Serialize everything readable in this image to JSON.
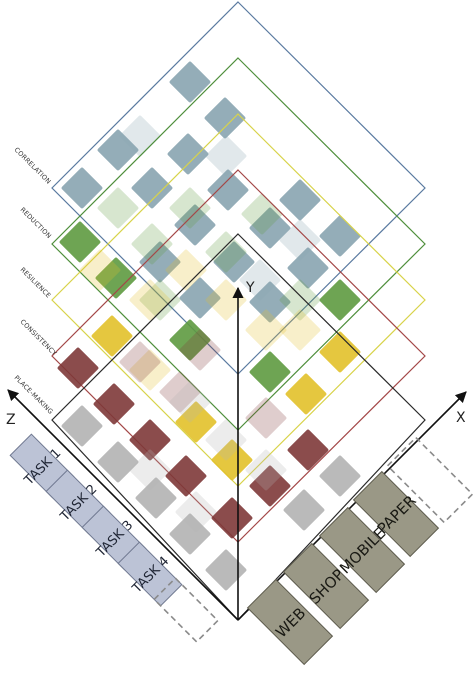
{
  "axes": {
    "y": "Y",
    "x": "X",
    "z": "Z"
  },
  "layers": [
    {
      "key": "correlation",
      "label": "CORRELATION",
      "stroke": "#5a7aa0",
      "fill": "#88a4b0"
    },
    {
      "key": "reduction",
      "label": "REDUCTION",
      "stroke": "#4f8f3c",
      "fill": "#5e9a40"
    },
    {
      "key": "resilience",
      "label": "RESILIENCE",
      "stroke": "#d8d34a",
      "fill": "#e2c12a"
    },
    {
      "key": "consistency",
      "label": "CONSISTENCY",
      "stroke": "#a44848",
      "fill": "#7e3838"
    },
    {
      "key": "placemaking",
      "label": "PLACE-MAKING",
      "stroke": "#2a2a2a",
      "fill": "#b3b3b3"
    }
  ],
  "tasks": [
    "TASK 1",
    "TASK 2",
    "TASK 3",
    "TASK 4"
  ],
  "channels": [
    "WEB",
    "SHOP",
    "MOBILE",
    "PAPER"
  ],
  "colors": {
    "task_fill": "#bcc3d6",
    "task_stroke": "#6f7890",
    "channel_fill": "#9a9886",
    "channel_stroke": "#5c5a4c",
    "dashed": "#8a8a8a",
    "axis": "#111111"
  }
}
